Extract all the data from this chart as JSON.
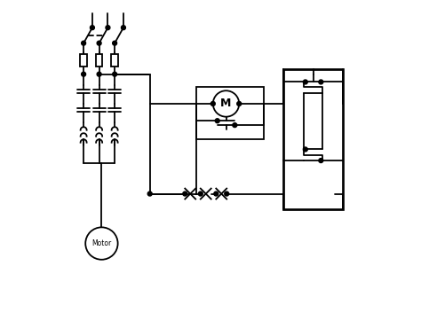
{
  "bg_color": "#ffffff",
  "line_color": "#000000",
  "lw": 1.3,
  "fig_width": 4.74,
  "fig_height": 3.53,
  "dpi": 100
}
